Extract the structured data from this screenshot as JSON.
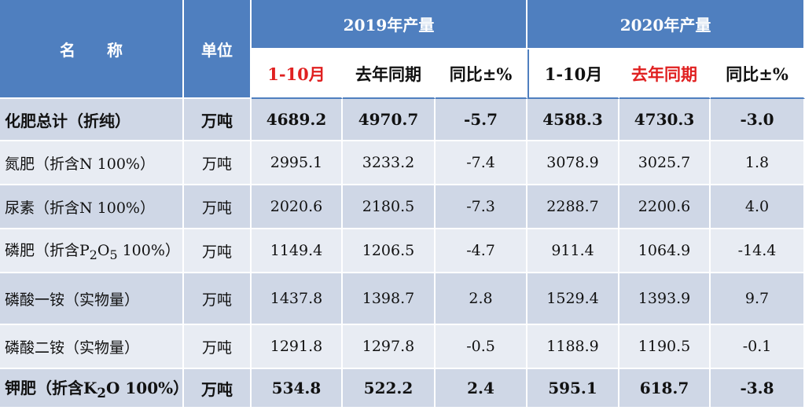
{
  "chart_data": {
    "type": "table",
    "header": {
      "name": [
        "名",
        "称"
      ],
      "unit": "单位",
      "group_2019": "2019年产量",
      "group_2020": "2020年产量",
      "sub_2019": [
        "1-10月",
        "去年同期",
        "同比±%"
      ],
      "sub_2020": [
        "1-10月",
        "去年同期",
        "同比±%"
      ]
    },
    "rows": [
      {
        "name": "化肥总计（折纯）",
        "unit": "万吨",
        "values": [
          "4689.2",
          "4970.7",
          "-5.7",
          "4588.3",
          "4730.3",
          "-3.0"
        ],
        "bold": true
      },
      {
        "name": "氮肥（折含N 100%）",
        "unit": "万吨",
        "values": [
          "2995.1",
          "3233.2",
          "-7.4",
          "3078.9",
          "3025.7",
          "1.8"
        ],
        "bold": false
      },
      {
        "name": "尿素（折含N 100%）",
        "unit": "万吨",
        "values": [
          "2020.6",
          "2180.5",
          "-7.3",
          "2288.7",
          "2200.6",
          "4.0"
        ],
        "bold": false
      },
      {
        "name_parts": [
          "磷肥（折含P",
          "2",
          "O",
          "5",
          " 100%）"
        ],
        "unit": "万吨",
        "values": [
          "1149.4",
          "1206.5",
          "-4.7",
          "911.4",
          "1064.9",
          "-14.4"
        ],
        "bold": false
      },
      {
        "name": "磷酸一铵（实物量）",
        "unit": "万吨",
        "values": [
          "1437.8",
          "1398.7",
          "2.8",
          "1529.4",
          "1393.9",
          "9.7"
        ],
        "bold": false
      },
      {
        "name": "磷酸二铵（实物量）",
        "unit": "万吨",
        "values": [
          "1291.8",
          "1297.8",
          "-0.5",
          "1188.9",
          "1190.5",
          "-0.1"
        ],
        "bold": false
      },
      {
        "name_parts": [
          "钾肥（折含K",
          "2",
          "O 100%）"
        ],
        "unit": "万吨",
        "values": [
          "534.8",
          "522.2",
          "2.4",
          "595.1",
          "618.7",
          "-3.8"
        ],
        "bold": true
      }
    ]
  },
  "colors": {
    "header_blue": "#4f7fbf",
    "highlight_red": "#e02020",
    "row_dark": "#cfd7e6",
    "row_light": "#e8ecf3"
  }
}
